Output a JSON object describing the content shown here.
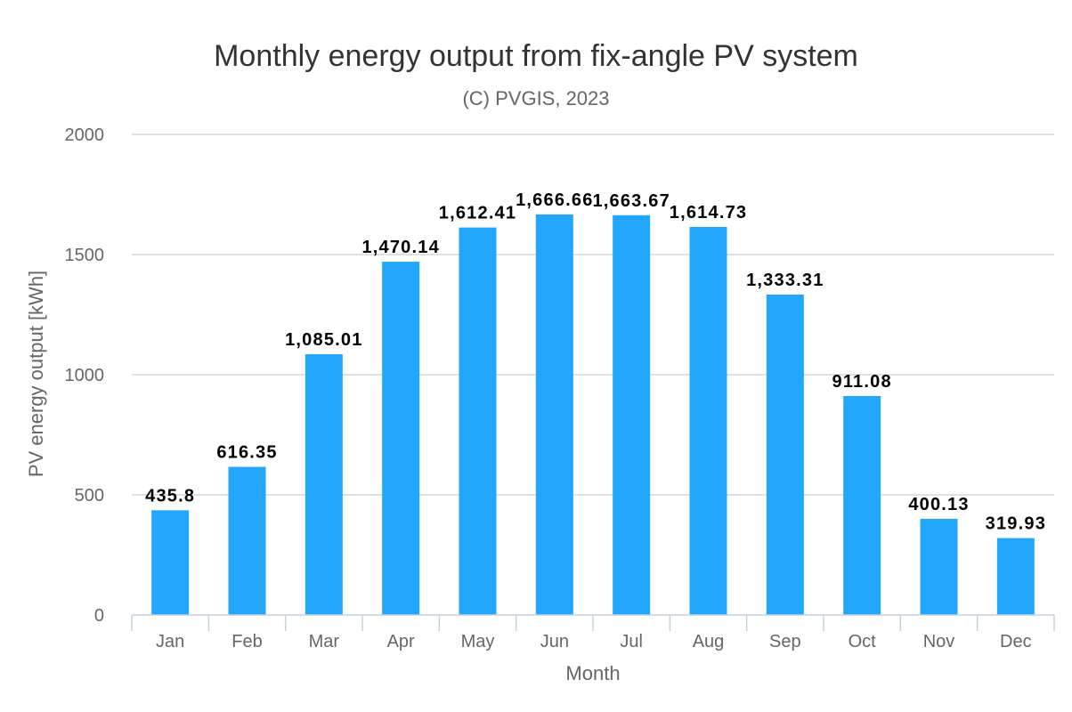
{
  "chart_data": {
    "type": "bar",
    "title": "Monthly energy output from fix-angle PV system",
    "subtitle": "(C) PVGIS, 2023",
    "xlabel": "Month",
    "ylabel": "PV energy output [kWh]",
    "categories": [
      "Jan",
      "Feb",
      "Mar",
      "Apr",
      "May",
      "Jun",
      "Jul",
      "Aug",
      "Sep",
      "Oct",
      "Nov",
      "Dec"
    ],
    "values": [
      435.8,
      616.35,
      1085.01,
      1470.14,
      1612.41,
      1666.66,
      1663.67,
      1614.73,
      1333.31,
      911.08,
      400.13,
      319.93
    ],
    "data_labels": [
      "435.8",
      "616.35",
      "1,085.01",
      "1,470.14",
      "1,612.41",
      "1,666.66",
      "1,663.67",
      "1,614.73",
      "1,333.31",
      "911.08",
      "400.13",
      "319.93"
    ],
    "ylim": [
      0,
      2000
    ],
    "yticks": [
      0,
      500,
      1000,
      1500,
      2000
    ],
    "grid": true,
    "legend": "none",
    "bar_color": "#22a7fd"
  }
}
